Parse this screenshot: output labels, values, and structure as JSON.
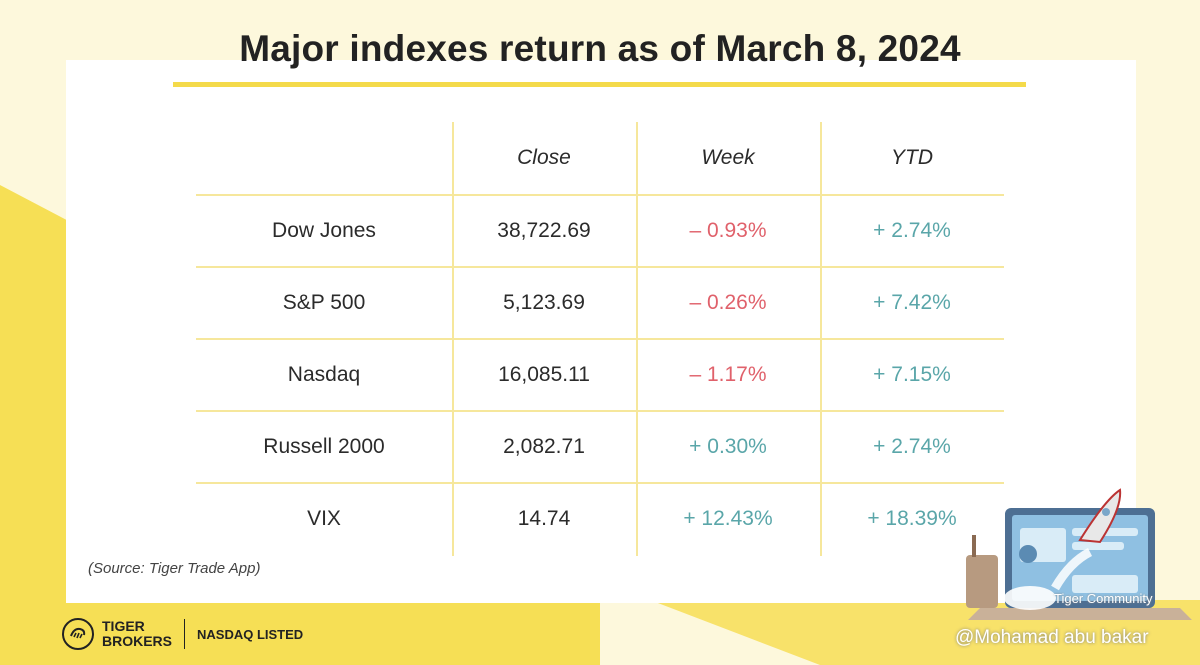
{
  "title": "Major indexes return as of March 8, 2024",
  "table": {
    "headers": [
      "",
      "Close",
      "Week",
      "YTD"
    ],
    "rows": [
      {
        "name": "Dow Jones",
        "close": "38,722.69",
        "week": "– 0.93%",
        "ytd": "+ 2.74%"
      },
      {
        "name": "S&P 500",
        "close": "5,123.69",
        "week": "– 0.26%",
        "ytd": "+ 7.42%"
      },
      {
        "name": "Nasdaq",
        "close": "16,085.11",
        "week": "– 1.17%",
        "ytd": "+ 7.15%"
      },
      {
        "name": "Russell 2000",
        "close": "2,082.71",
        "week": "+ 0.30%",
        "ytd": "+ 2.74%"
      },
      {
        "name": "VIX",
        "close": "14.74",
        "week": "+ 12.43%",
        "ytd": "+ 18.39%"
      }
    ]
  },
  "source": "(Source: Tiger Trade App)",
  "logo": {
    "line1": "TIGER",
    "line2": "BROKERS",
    "listed": "NASDAQ LISTED"
  },
  "watermark": {
    "community": "Tiger Community",
    "author": "@Mohamad abu bakar"
  },
  "colors": {
    "accent": "#f4da4a",
    "negative": "#e0616b",
    "positive": "#5aa6a9",
    "grid": "#f6e79c"
  }
}
